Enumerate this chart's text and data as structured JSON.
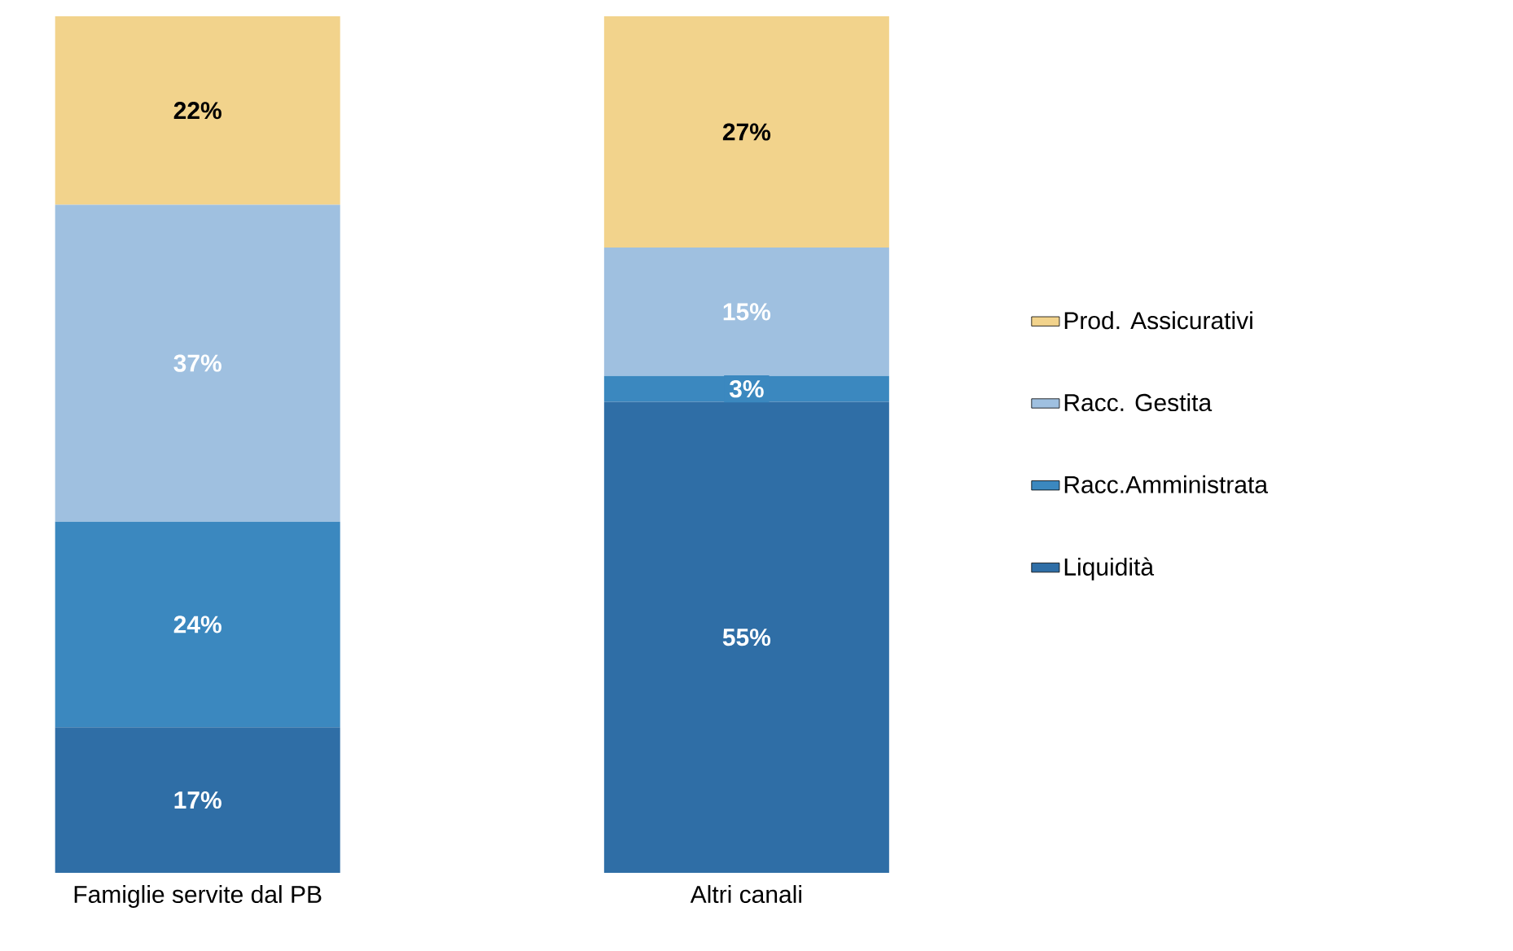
{
  "chart_data": {
    "type": "bar",
    "stacked": true,
    "categories": [
      "Famiglie servite dal PB",
      "Altri canali"
    ],
    "series": [
      {
        "name": "Liquidità",
        "color": "#2f6ea6",
        "values": [
          17,
          55
        ],
        "value_labels": [
          "17%",
          "55%"
        ]
      },
      {
        "name": "Racc.Amministrata",
        "color": "#3b88bf",
        "values": [
          24,
          3
        ],
        "value_labels": [
          "24%",
          "3%"
        ]
      },
      {
        "name": "Racc. Gestita",
        "color": "#9fc0e0",
        "values": [
          37,
          15
        ],
        "value_labels": [
          "37%",
          "15%"
        ]
      },
      {
        "name": "Prod. Assicurativi",
        "color": "#f2d38c",
        "values": [
          22,
          27
        ],
        "value_labels": [
          "22%",
          "27%"
        ]
      }
    ],
    "legend": "right"
  }
}
